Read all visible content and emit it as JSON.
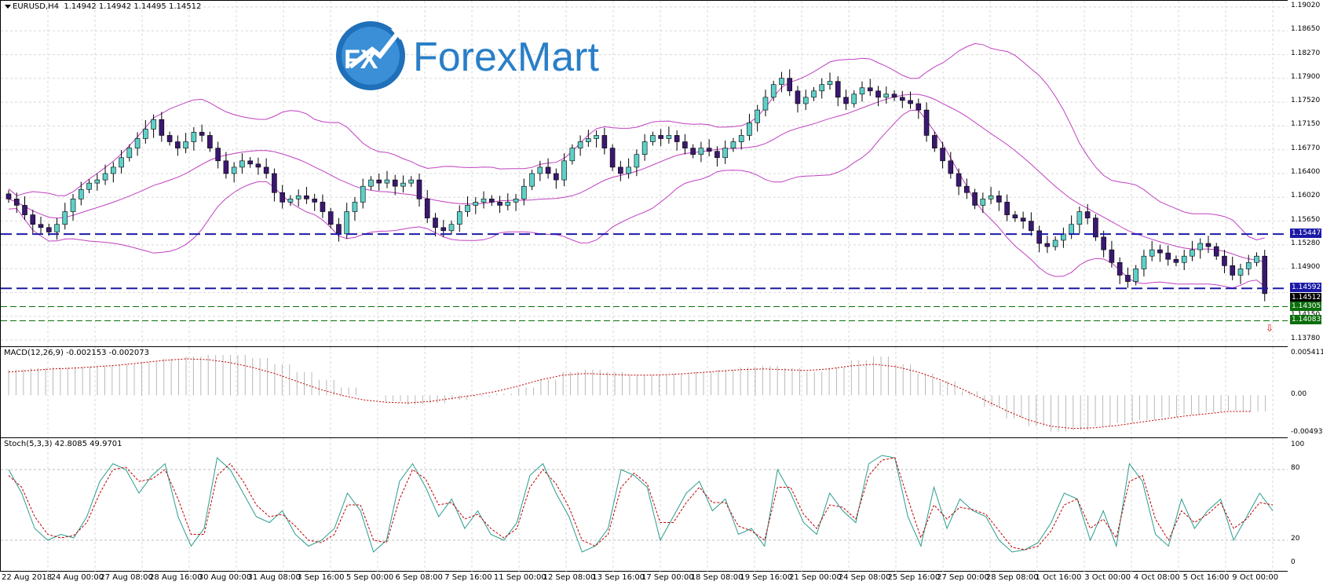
{
  "window": {
    "symbol_header": "EURUSD,H4  1.14942 1.14942 1.14495 1.14512",
    "macd_header": "MACD(12,26,9) -0.002153 -0.002073",
    "stoch_header": "Stoch(5,3,3) 42.8085 49.9701"
  },
  "logo": {
    "text": "ForexMart",
    "mark": "FX"
  },
  "price_axis": {
    "labels": [
      "1.19020",
      "1.18650",
      "1.18270",
      "1.17900",
      "1.17520",
      "1.17150",
      "1.16770",
      "1.16400",
      "1.16020",
      "1.15650",
      "1.15280",
      "1.14900",
      "1.14530",
      "1.14150",
      "1.13780"
    ],
    "tags": [
      {
        "text": "1.15447",
        "color": "#1a1aa6"
      },
      {
        "text": "1.14592",
        "color": "#1a1aa6"
      },
      {
        "text": "1.14512",
        "color": "#000000"
      },
      {
        "text": "1.14305",
        "color": "#0b6e0b"
      },
      {
        "text": "1.14083",
        "color": "#0b6e0b"
      }
    ]
  },
  "macd_axis": {
    "labels": [
      "0.005411",
      "0.00",
      "-0.004937"
    ]
  },
  "stoch_axis": {
    "labels": [
      "100",
      "80",
      "20",
      "0"
    ]
  },
  "time_axis": {
    "labels": [
      "22 Aug 2018",
      "24 Aug 00:00",
      "27 Aug 08:00",
      "28 Aug 16:00",
      "30 Aug 00:00",
      "31 Aug 08:00",
      "3 Sep 16:00",
      "5 Sep 00:00",
      "6 Sep 08:00",
      "7 Sep 16:00",
      "11 Sep 00:00",
      "12 Sep 08:00",
      "13 Sep 16:00",
      "17 Sep 00:00",
      "18 Sep 08:00",
      "19 Sep 16:00",
      "21 Sep 00:00",
      "24 Sep 08:00",
      "25 Sep 16:00",
      "27 Sep 00:00",
      "28 Sep 08:00",
      "1 Oct 16:00",
      "3 Oct 00:00",
      "4 Oct 08:00",
      "5 Oct 16:00",
      "9 Oct 00:00"
    ]
  },
  "levels": {
    "blue_dashed": [
      1.15447,
      1.14592
    ],
    "green_dashed": [
      1.14305,
      1.14083
    ],
    "colors": {
      "blue": "#1a1aa6",
      "green": "#0b6e0b",
      "bull": "#5ed0c8",
      "bear": "#3a1870",
      "band": "#c040c0",
      "signal": "#c00000"
    }
  },
  "chart_data": [
    {
      "type": "candlestick",
      "title": "EURUSD,H4",
      "ylim": [
        1.1378,
        1.1902
      ],
      "close_series": [
        1.16,
        1.159,
        1.1575,
        1.156,
        1.1555,
        1.1548,
        1.156,
        1.158,
        1.16,
        1.1615,
        1.1625,
        1.163,
        1.164,
        1.165,
        1.1665,
        1.168,
        1.1695,
        1.171,
        1.1725,
        1.17,
        1.169,
        1.168,
        1.169,
        1.1705,
        1.17,
        1.168,
        1.166,
        1.164,
        1.165,
        1.166,
        1.1655,
        1.165,
        1.164,
        1.161,
        1.1595,
        1.16,
        1.1605,
        1.16,
        1.1595,
        1.158,
        1.156,
        1.1545,
        1.158,
        1.1595,
        1.162,
        1.163,
        1.1625,
        1.163,
        1.162,
        1.1625,
        1.163,
        1.16,
        1.157,
        1.1555,
        1.155,
        1.156,
        1.158,
        1.159,
        1.1595,
        1.16,
        1.1595,
        1.159,
        1.1595,
        1.16,
        1.162,
        1.164,
        1.165,
        1.164,
        1.163,
        1.166,
        1.168,
        1.169,
        1.1695,
        1.17,
        1.168,
        1.165,
        1.164,
        1.165,
        1.167,
        1.169,
        1.17,
        1.1695,
        1.17,
        1.169,
        1.168,
        1.167,
        1.168,
        1.1675,
        1.1665,
        1.168,
        1.169,
        1.17,
        1.172,
        1.174,
        1.176,
        1.178,
        1.179,
        1.177,
        1.175,
        1.176,
        1.177,
        1.178,
        1.1785,
        1.176,
        1.175,
        1.1765,
        1.1775,
        1.177,
        1.176,
        1.1765,
        1.176,
        1.1755,
        1.175,
        1.174,
        1.17,
        1.168,
        1.166,
        1.164,
        1.162,
        1.161,
        1.159,
        1.16,
        1.1605,
        1.1595,
        1.1575,
        1.157,
        1.1565,
        1.155,
        1.153,
        1.1525,
        1.1535,
        1.1545,
        1.156,
        1.158,
        1.157,
        1.154,
        1.152,
        1.15,
        1.148,
        1.147,
        1.149,
        1.151,
        1.152,
        1.1515,
        1.1505,
        1.15,
        1.151,
        1.152,
        1.153,
        1.1525,
        1.151,
        1.1495,
        1.148,
        1.149,
        1.15,
        1.151,
        1.1451
      ],
      "blue_levels": [
        1.15447,
        1.14592
      ],
      "green_levels": [
        1.14305,
        1.14083
      ]
    },
    {
      "type": "bar",
      "title": "MACD(12,26,9)",
      "ylim": [
        -0.004937,
        0.005411
      ],
      "values": [
        0.0033,
        0.0035,
        0.0036,
        0.0037,
        0.0038,
        0.004,
        0.0043,
        0.0047,
        0.005,
        0.0052,
        0.0052,
        0.0048,
        0.004,
        0.003,
        0.002,
        0.001,
        0.0,
        -0.0008,
        -0.0012,
        -0.001,
        -0.0006,
        -0.0002,
        0.0002,
        0.001,
        0.002,
        0.003,
        0.0033,
        0.003,
        0.0026,
        0.0026,
        0.0028,
        0.003,
        0.0033,
        0.0036,
        0.0038,
        0.0035,
        0.003,
        0.0036,
        0.0045,
        0.005,
        0.004,
        0.0028,
        0.0018,
        0.0005,
        -0.0015,
        -0.003,
        -0.004,
        -0.0047,
        -0.0045,
        -0.004,
        -0.0036,
        -0.0032,
        -0.0028,
        -0.0025,
        -0.0022,
        -0.002,
        -0.0021
      ],
      "signal": [
        0.003,
        0.0032,
        0.0034,
        0.0035,
        0.0037,
        0.0039,
        0.0042,
        0.0045,
        0.0047,
        0.0046,
        0.0042,
        0.0036,
        0.0028,
        0.0018,
        0.0008,
        0.0,
        -0.0006,
        -0.0009,
        -0.001,
        -0.0008,
        -0.0004,
        0.0,
        0.0005,
        0.0012,
        0.002,
        0.0026,
        0.0028,
        0.0027,
        0.0026,
        0.0026,
        0.0027,
        0.0029,
        0.0031,
        0.0033,
        0.0034,
        0.0033,
        0.0032,
        0.0034,
        0.0038,
        0.004,
        0.0037,
        0.003,
        0.002,
        0.0008,
        -0.0006,
        -0.002,
        -0.0032,
        -0.004,
        -0.0043,
        -0.0042,
        -0.0039,
        -0.0035,
        -0.0031,
        -0.0027,
        -0.0024,
        -0.0021,
        -0.0021
      ]
    },
    {
      "type": "line",
      "title": "Stoch(5,3,3)",
      "ylim": [
        0,
        100
      ],
      "levels": [
        20,
        80
      ],
      "main": [
        80,
        60,
        30,
        20,
        25,
        22,
        40,
        70,
        85,
        80,
        60,
        75,
        85,
        40,
        15,
        30,
        90,
        80,
        60,
        40,
        35,
        45,
        25,
        15,
        20,
        30,
        60,
        45,
        10,
        20,
        70,
        85,
        65,
        40,
        55,
        30,
        45,
        25,
        20,
        35,
        75,
        85,
        60,
        40,
        10,
        15,
        30,
        80,
        75,
        65,
        20,
        40,
        60,
        70,
        45,
        55,
        25,
        30,
        15,
        80,
        60,
        35,
        25,
        60,
        45,
        35,
        85,
        92,
        90,
        40,
        15,
        65,
        30,
        55,
        45,
        40,
        20,
        10,
        12,
        18,
        35,
        60,
        55,
        20,
        45,
        15,
        85,
        70,
        25,
        15,
        55,
        30,
        45,
        55,
        20,
        40,
        60,
        45
      ],
      "signal": [
        75,
        65,
        40,
        25,
        22,
        24,
        35,
        60,
        80,
        82,
        70,
        72,
        80,
        55,
        25,
        25,
        75,
        85,
        70,
        50,
        40,
        42,
        32,
        20,
        18,
        25,
        50,
        50,
        20,
        18,
        55,
        80,
        72,
        50,
        52,
        38,
        42,
        30,
        22,
        30,
        65,
        80,
        68,
        48,
        20,
        15,
        25,
        65,
        77,
        68,
        35,
        35,
        52,
        65,
        52,
        52,
        32,
        28,
        20,
        65,
        65,
        42,
        30,
        50,
        48,
        38,
        75,
        88,
        90,
        55,
        22,
        50,
        38,
        48,
        46,
        42,
        28,
        14,
        12,
        15,
        28,
        50,
        55,
        30,
        38,
        22,
        70,
        75,
        38,
        20,
        45,
        35,
        42,
        52,
        30,
        38,
        52,
        50
      ]
    }
  ]
}
